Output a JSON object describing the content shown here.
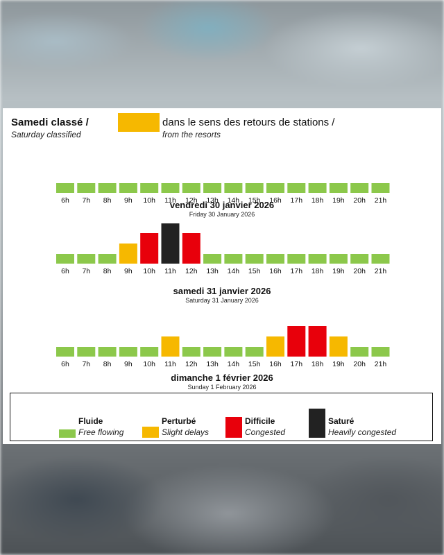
{
  "header": {
    "title_fr": "Samedi classé /",
    "title_en": "Saturday classified",
    "swatch_color": "#f6b800",
    "direction_fr": "dans le sens des retours de stations /",
    "direction_en": "from the resorts"
  },
  "chart_data": [
    {
      "type": "bar",
      "categories": [
        "6h",
        "7h",
        "8h",
        "9h",
        "10h",
        "11h",
        "12h",
        "13h",
        "14h",
        "15h",
        "16h",
        "17h",
        "18h",
        "19h",
        "20h",
        "21h"
      ],
      "levels": [
        1,
        1,
        1,
        1,
        1,
        1,
        1,
        1,
        1,
        1,
        1,
        1,
        1,
        1,
        1,
        1
      ],
      "title": "vendredi 30 janvier 2026",
      "subtitle": "Friday 30 January 2026"
    },
    {
      "type": "bar",
      "categories": [
        "6h",
        "7h",
        "8h",
        "9h",
        "10h",
        "11h",
        "12h",
        "13h",
        "14h",
        "15h",
        "16h",
        "17h",
        "18h",
        "19h",
        "20h",
        "21h"
      ],
      "levels": [
        1,
        1,
        1,
        2,
        3,
        4,
        3,
        1,
        1,
        1,
        1,
        1,
        1,
        1,
        1,
        1
      ],
      "title": "samedi 31 janvier 2026",
      "subtitle": "Saturday 31 January 2026"
    },
    {
      "type": "bar",
      "categories": [
        "6h",
        "7h",
        "8h",
        "9h",
        "10h",
        "11h",
        "12h",
        "13h",
        "14h",
        "15h",
        "16h",
        "17h",
        "18h",
        "19h",
        "20h",
        "21h"
      ],
      "levels": [
        1,
        1,
        1,
        1,
        1,
        2,
        1,
        1,
        1,
        1,
        2,
        3,
        3,
        2,
        1,
        1
      ],
      "title": "dimanche 1 février 2026",
      "subtitle": "Sunday 1 February 2026"
    }
  ],
  "legend": [
    {
      "level": 1,
      "name": "Fluide",
      "desc": "Free flowing",
      "color": "#8cc84b"
    },
    {
      "level": 2,
      "name": "Perturbé",
      "desc": "Slight delays",
      "color": "#f6b800"
    },
    {
      "level": 3,
      "name": "Difficile",
      "desc": "Congested",
      "color": "#e8000b"
    },
    {
      "level": 4,
      "name": "Saturé",
      "desc": "Heavily congested",
      "color": "#222222"
    }
  ]
}
